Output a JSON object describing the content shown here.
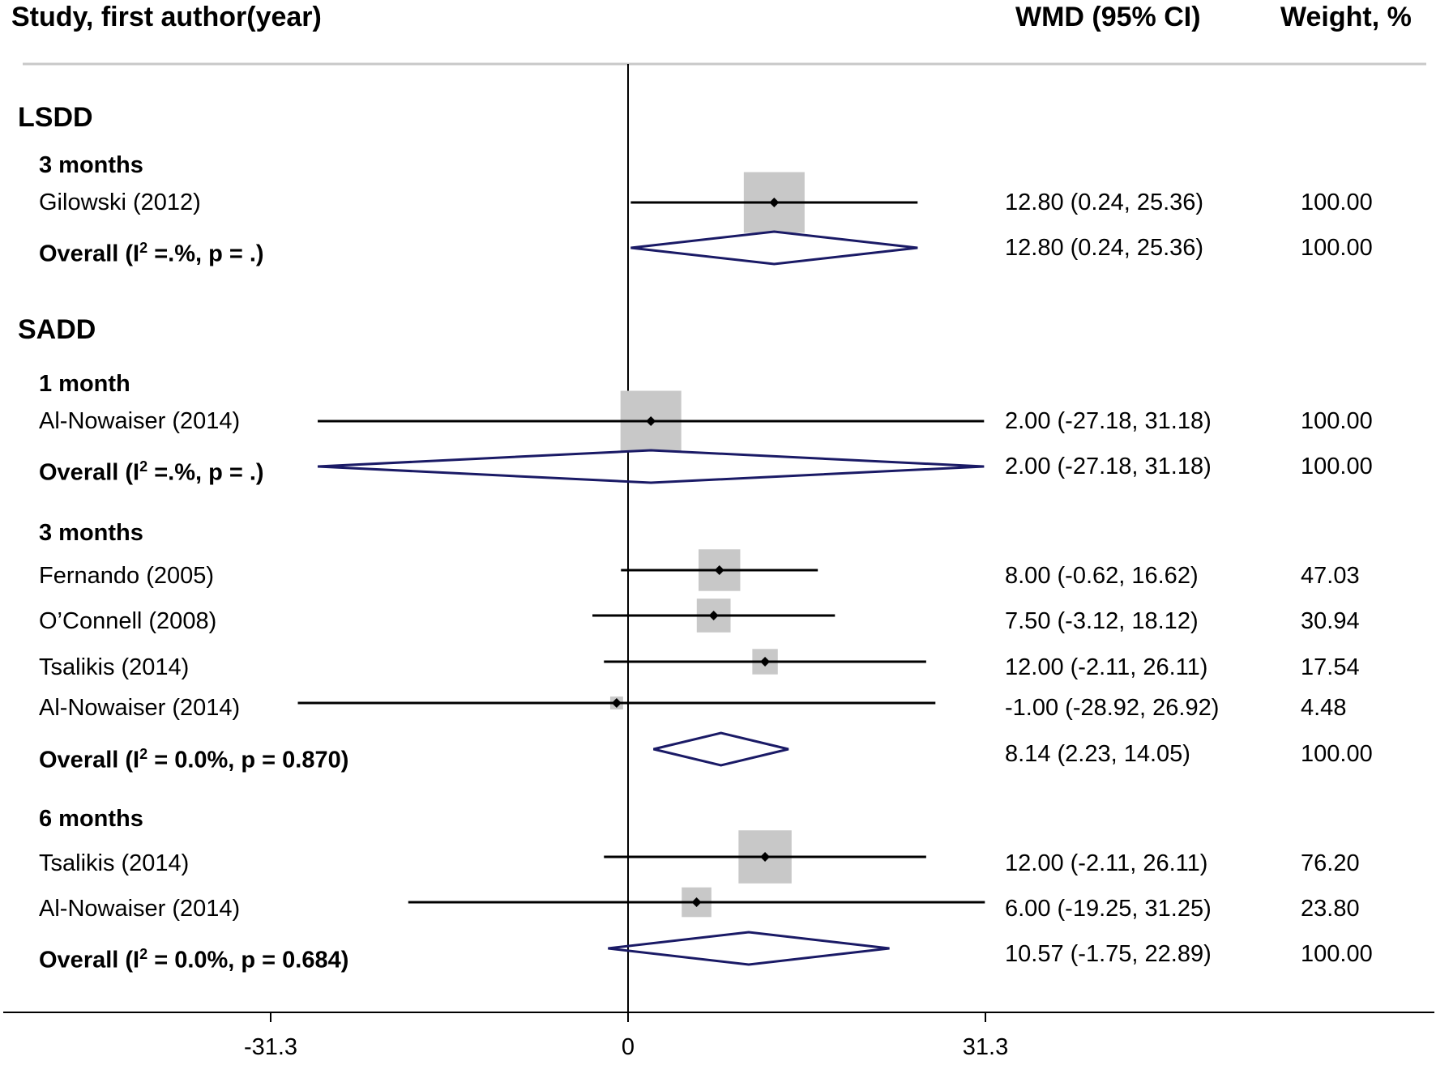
{
  "header": {
    "study_label": "Study, first author(year)",
    "wmd_label": "WMD (95% CI)",
    "weight_label": "Weight, %"
  },
  "chart_data": {
    "type": "forest",
    "xlim": [
      -31.3,
      31.3
    ],
    "ticks": [
      -31.3,
      0,
      31.3
    ],
    "tick_labels": [
      "-31.3",
      "0",
      "31.3"
    ],
    "reference_line": 0,
    "groups": [
      {
        "name": "LSDD",
        "subgroups": [
          {
            "name": "3 months",
            "studies": [
              {
                "label": "Gilowski (2012)",
                "est": 12.8,
                "lo": 0.24,
                "hi": 25.36,
                "ci_text": "12.80 (0.24, 25.36)",
                "weight": "100.00"
              }
            ],
            "overall": {
              "label_prefix": "Overall (I",
              "sup": "2",
              "label_suffix": " =.%, p = .)",
              "est": 12.8,
              "lo": 0.24,
              "hi": 25.36,
              "ci_text": "12.80 (0.24, 25.36)",
              "weight": "100.00"
            }
          }
        ]
      },
      {
        "name": "SADD",
        "subgroups": [
          {
            "name": "1 month",
            "studies": [
              {
                "label": "Al-Nowaiser (2014)",
                "est": 2.0,
                "lo": -27.18,
                "hi": 31.18,
                "ci_text": "2.00 (-27.18, 31.18)",
                "weight": "100.00"
              }
            ],
            "overall": {
              "label_prefix": "Overall (I",
              "sup": "2",
              "label_suffix": " =.%, p = .)",
              "est": 2.0,
              "lo": -27.18,
              "hi": 31.18,
              "ci_text": "2.00 (-27.18, 31.18)",
              "weight": "100.00"
            }
          },
          {
            "name": "3 months",
            "studies": [
              {
                "label": "Fernando (2005)",
                "est": 8.0,
                "lo": -0.62,
                "hi": 16.62,
                "ci_text": "8.00 (-0.62, 16.62)",
                "weight": "47.03"
              },
              {
                "label": "O’Connell (2008)",
                "est": 7.5,
                "lo": -3.12,
                "hi": 18.12,
                "ci_text": "7.50 (-3.12, 18.12)",
                "weight": "30.94"
              },
              {
                "label": "Tsalikis (2014)",
                "est": 12.0,
                "lo": -2.11,
                "hi": 26.11,
                "ci_text": "12.00 (-2.11, 26.11)",
                "weight": "17.54"
              },
              {
                "label": "Al-Nowaiser (2014)",
                "est": -1.0,
                "lo": -28.92,
                "hi": 26.92,
                "ci_text": "-1.00 (-28.92, 26.92)",
                "weight": "4.48"
              }
            ],
            "overall": {
              "label_prefix": "Overall (I",
              "sup": "2",
              "label_suffix": " = 0.0%, p = 0.870)",
              "est": 8.14,
              "lo": 2.23,
              "hi": 14.05,
              "ci_text": "8.14 (2.23, 14.05)",
              "weight": "100.00"
            }
          },
          {
            "name": "6 months",
            "studies": [
              {
                "label": "Tsalikis (2014)",
                "est": 12.0,
                "lo": -2.11,
                "hi": 26.11,
                "ci_text": "12.00 (-2.11, 26.11)",
                "weight": "76.20"
              },
              {
                "label": "Al-Nowaiser (2014)",
                "est": 6.0,
                "lo": -19.25,
                "hi": 31.25,
                "ci_text": "6.00 (-19.25, 31.25)",
                "weight": "23.80"
              }
            ],
            "overall": {
              "label_prefix": "Overall (I",
              "sup": "2",
              "label_suffix": " = 0.0%, p = 0.684)",
              "est": 10.57,
              "lo": -1.75,
              "hi": 22.89,
              "ci_text": "10.57 (-1.75, 22.89)",
              "weight": "100.00"
            }
          }
        ]
      }
    ],
    "colors": {
      "ci_line": "#000000",
      "box": "#c8c8c8",
      "diamond": "#1a1a66",
      "header_rule": "#c8c8c8"
    }
  }
}
